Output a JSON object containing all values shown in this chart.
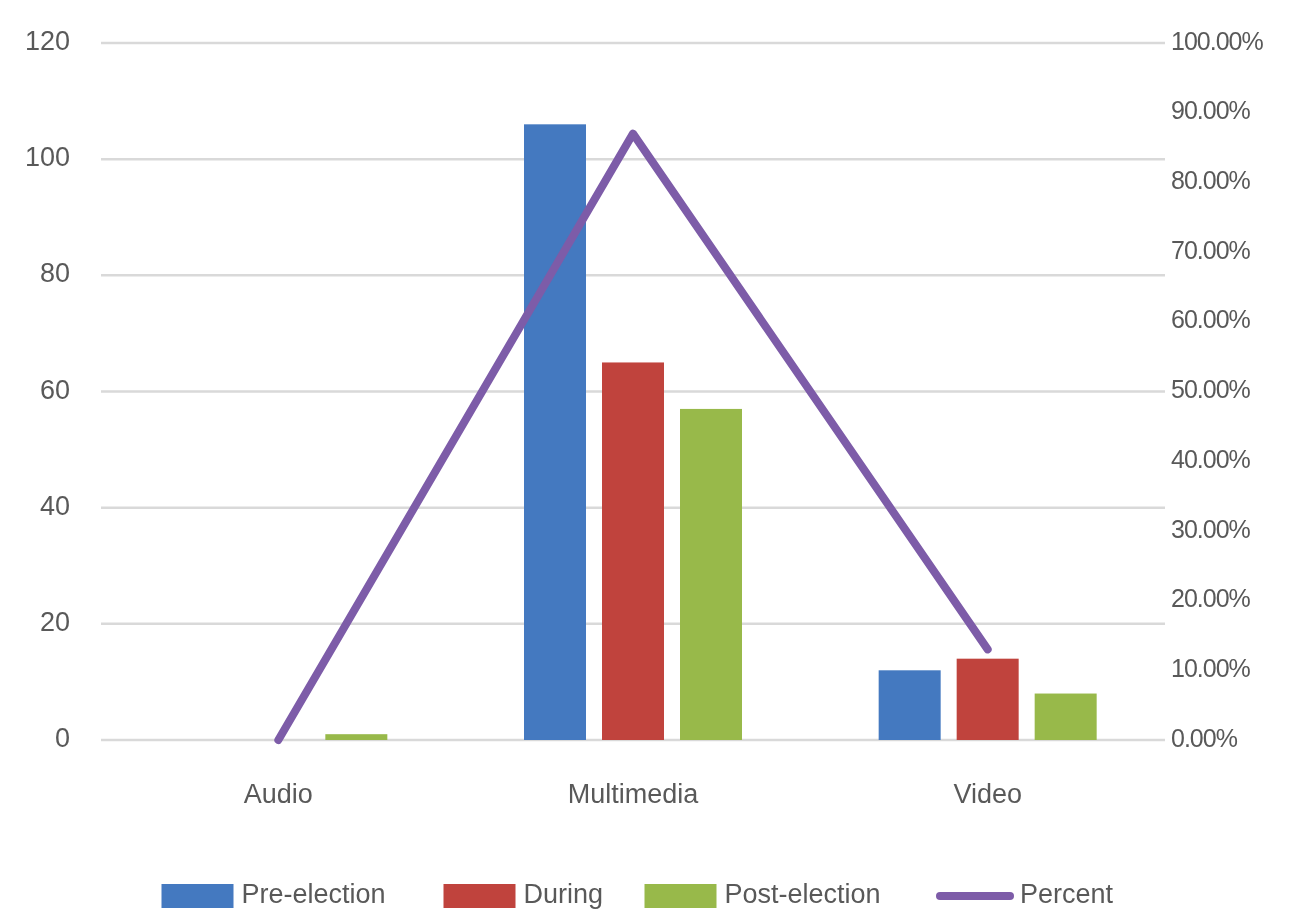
{
  "chart_data": {
    "type": "bar",
    "categories": [
      "Audio",
      "Multimedia",
      "Video"
    ],
    "series": [
      {
        "name": "Pre-election",
        "color": "#4479c0",
        "values": [
          0,
          106,
          12
        ]
      },
      {
        "name": "During",
        "color": "#c0433d",
        "values": [
          0,
          65,
          14
        ]
      },
      {
        "name": "Post-election",
        "color": "#98b94a",
        "values": [
          1,
          57,
          8
        ]
      },
      {
        "name": "Percent",
        "type": "line",
        "axis": "y2",
        "color": "#7d5ca8",
        "values": [
          0,
          87,
          13
        ]
      }
    ],
    "ylim": [
      0,
      120
    ],
    "yticks": [
      0,
      20,
      40,
      60,
      80,
      100,
      120
    ],
    "y2lim": [
      0,
      100
    ],
    "y2ticks": [
      {
        "value": 0,
        "label": "0.00%"
      },
      {
        "value": 10,
        "label": "10.00%"
      },
      {
        "value": 20,
        "label": "20.00%"
      },
      {
        "value": 30,
        "label": "30.00%"
      },
      {
        "value": 40,
        "label": "40.00%"
      },
      {
        "value": 50,
        "label": "50.00%"
      },
      {
        "value": 60,
        "label": "60.00%"
      },
      {
        "value": 70,
        "label": "70.00%"
      },
      {
        "value": 80,
        "label": "80.00%"
      },
      {
        "value": 90,
        "label": "90.00%"
      },
      {
        "value": 100,
        "label": "100.00%"
      }
    ],
    "grid": "y",
    "legend": "bottom"
  }
}
